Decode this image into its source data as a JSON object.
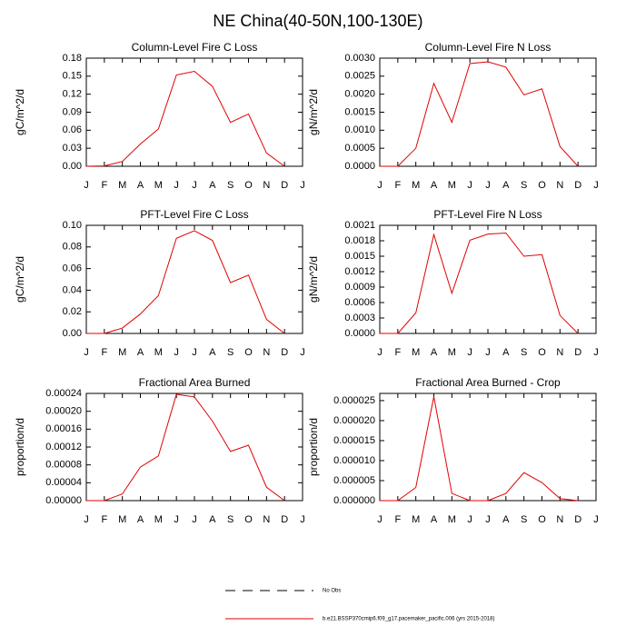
{
  "title": "NE China(40-50N,100-130E)",
  "legend": [
    {
      "name": "No Obs",
      "color": "#000000",
      "dash": true
    },
    {
      "name": "b.e21.BSSP370cmip6.f09_g17.pacemaker_pacific.006 (yrs 2015-2018)",
      "color": "#e00000",
      "dash": false
    }
  ],
  "chart_data": [
    {
      "type": "line",
      "title": "Column-Level Fire C Loss",
      "ylabel": "gC/m^2/d",
      "categories": [
        "J",
        "F",
        "M",
        "A",
        "M",
        "J",
        "J",
        "A",
        "S",
        "O",
        "N",
        "D",
        "J"
      ],
      "values": [
        0,
        0.0005,
        0.008,
        0.037,
        0.062,
        0.152,
        0.158,
        0.133,
        0.073,
        0.087,
        0.022,
        0,
        null
      ],
      "color": "#e00000",
      "ylim": [
        0,
        0.18
      ],
      "yticks": [
        {
          "value": 0,
          "label": "0.00"
        },
        0.03,
        0.06,
        0.09,
        0.12,
        0.15,
        0.18
      ]
    },
    {
      "type": "line",
      "title": "Column-Level Fire N Loss",
      "ylabel": "gN/m^2/d",
      "categories": [
        "J",
        "F",
        "M",
        "A",
        "M",
        "J",
        "J",
        "A",
        "S",
        "O",
        "N",
        "D",
        "J"
      ],
      "values": [
        0,
        0,
        0.0005,
        0.0023,
        0.00122,
        0.00285,
        0.0029,
        0.00275,
        0.00198,
        0.00215,
        0.00055,
        0,
        null
      ],
      "color": "#e00000",
      "ylim": [
        0,
        0.003
      ],
      "yticks": [
        {
          "value": 0,
          "label": "0.0000"
        },
        {
          "value": 0.0005,
          "label": "0.0005"
        },
        {
          "value": 0.001,
          "label": "0.0010"
        },
        {
          "value": 0.0015,
          "label": "0.0015"
        },
        {
          "value": 0.002,
          "label": "0.0020"
        },
        {
          "value": 0.0025,
          "label": "0.0025"
        },
        {
          "value": 0.003,
          "label": "0.0030"
        }
      ]
    },
    {
      "type": "line",
      "title": "PFT-Level Fire C Loss",
      "ylabel": "gC/m^2/d",
      "categories": [
        "J",
        "F",
        "M",
        "A",
        "M",
        "J",
        "J",
        "A",
        "S",
        "O",
        "N",
        "D",
        "J"
      ],
      "values": [
        0,
        0,
        0.005,
        0.018,
        0.035,
        0.088,
        0.095,
        0.086,
        0.047,
        0.054,
        0.013,
        0,
        null
      ],
      "color": "#e00000",
      "ylim": [
        0,
        0.1
      ],
      "yticks": [
        {
          "value": 0,
          "label": "0.00"
        },
        0.02,
        0.04,
        0.06,
        0.08,
        {
          "value": 0.1,
          "label": "0.10"
        }
      ]
    },
    {
      "type": "line",
      "title": "PFT-Level Fire N Loss",
      "ylabel": "gN/m^2/d",
      "categories": [
        "J",
        "F",
        "M",
        "A",
        "M",
        "J",
        "J",
        "A",
        "S",
        "O",
        "N",
        "D",
        "J"
      ],
      "values": [
        0,
        0,
        0.0004,
        0.00192,
        0.00078,
        0.00181,
        0.00193,
        0.00195,
        0.0015,
        0.00153,
        0.00035,
        0,
        null
      ],
      "color": "#e00000",
      "ylim": [
        0,
        0.0021
      ],
      "yticks": [
        {
          "value": 0,
          "label": "0.0000"
        },
        0.0003,
        0.0006,
        0.0009,
        0.0012,
        0.0015,
        0.0018,
        0.0021
      ]
    },
    {
      "type": "line",
      "title": "Fractional Area Burned",
      "ylabel": "proportion/d",
      "categories": [
        "J",
        "F",
        "M",
        "A",
        "M",
        "J",
        "J",
        "A",
        "S",
        "O",
        "N",
        "D",
        "J"
      ],
      "values": [
        0,
        0,
        1.5e-05,
        7.5e-05,
        0.0001,
        0.000238,
        0.000232,
        0.000178,
        0.00011,
        0.000124,
        3e-05,
        0,
        null
      ],
      "color": "#e00000",
      "ylim": [
        0,
        0.00024
      ],
      "yticks": [
        {
          "value": 0,
          "label": "0.00000"
        },
        4e-05,
        8e-05,
        0.00012,
        0.00016,
        {
          "value": 0.0002,
          "label": "0.00020"
        },
        0.00024
      ]
    },
    {
      "type": "line",
      "title": "Fractional Area Burned - Crop",
      "ylabel": "proportion/d",
      "categories": [
        "J",
        "F",
        "M",
        "A",
        "M",
        "J",
        "J",
        "A",
        "S",
        "O",
        "N",
        "D",
        "J"
      ],
      "values": [
        0,
        0,
        3.3e-06,
        2.6e-05,
        1.8e-06,
        0,
        0,
        1.8e-06,
        7e-06,
        4.5e-06,
        5e-07,
        0,
        null
      ],
      "color": "#e00000",
      "ylim": [
        0,
        2.68e-05
      ],
      "yticks": [
        {
          "value": 0,
          "label": "0.000000"
        },
        5e-06,
        {
          "value": 1e-05,
          "label": "0.000010"
        },
        1.5e-05,
        {
          "value": 2e-05,
          "label": "0.000020"
        },
        2.5e-05
      ]
    }
  ]
}
